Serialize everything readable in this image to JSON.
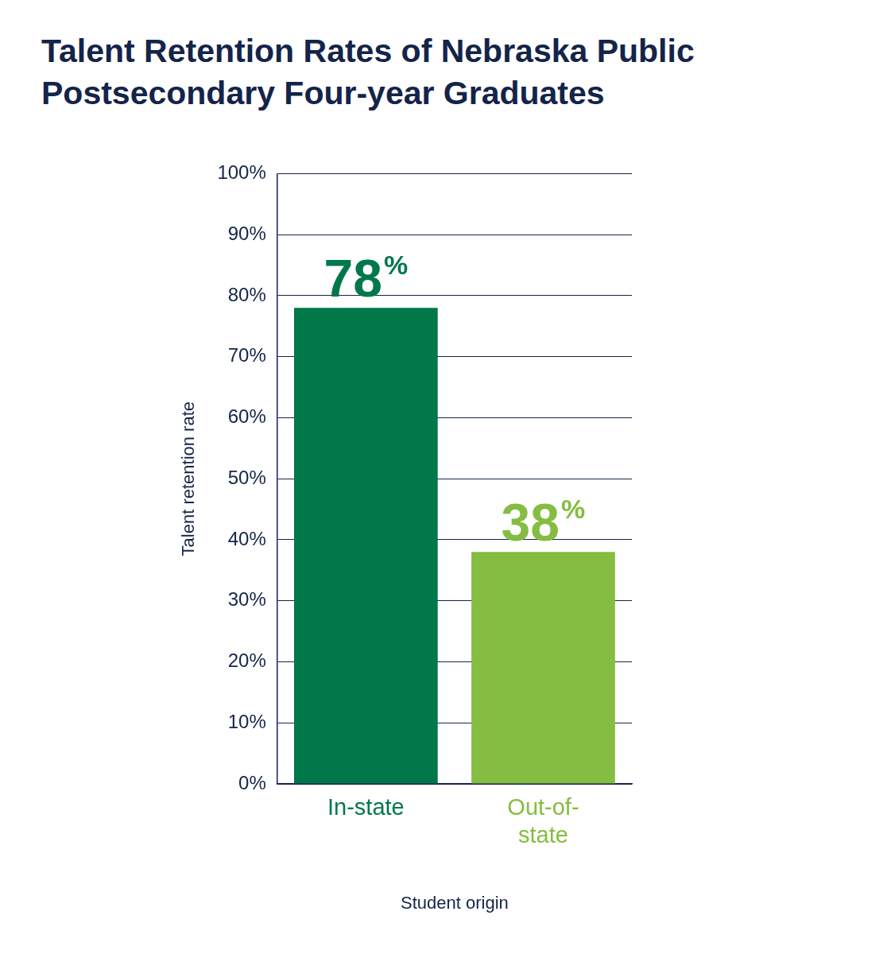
{
  "chart_data": {
    "type": "bar",
    "title": "Talent Retention Rates of Nebraska Public Postsecondary Four-year Graduates",
    "x_label": "Student origin",
    "y_label": "Talent retention rate",
    "categories": [
      "In-state",
      "Out-of-state"
    ],
    "values": [
      78,
      38
    ],
    "value_labels": [
      "78%",
      "38%"
    ],
    "colors": [
      "#00784a",
      "#84bd41"
    ],
    "ylim": [
      0,
      100
    ],
    "yticks": [
      {
        "value": 0,
        "label": "0%"
      },
      {
        "value": 10,
        "label": "10%"
      },
      {
        "value": 20,
        "label": "20%"
      },
      {
        "value": 30,
        "label": "30%"
      },
      {
        "value": 40,
        "label": "40%"
      },
      {
        "value": 50,
        "label": "50%"
      },
      {
        "value": 60,
        "label": "60%"
      },
      {
        "value": 70,
        "label": "70%"
      },
      {
        "value": 80,
        "label": "80%"
      },
      {
        "value": 90,
        "label": "90%"
      },
      {
        "value": 100,
        "label": "100%"
      }
    ],
    "grid": true,
    "data_labels": true
  }
}
